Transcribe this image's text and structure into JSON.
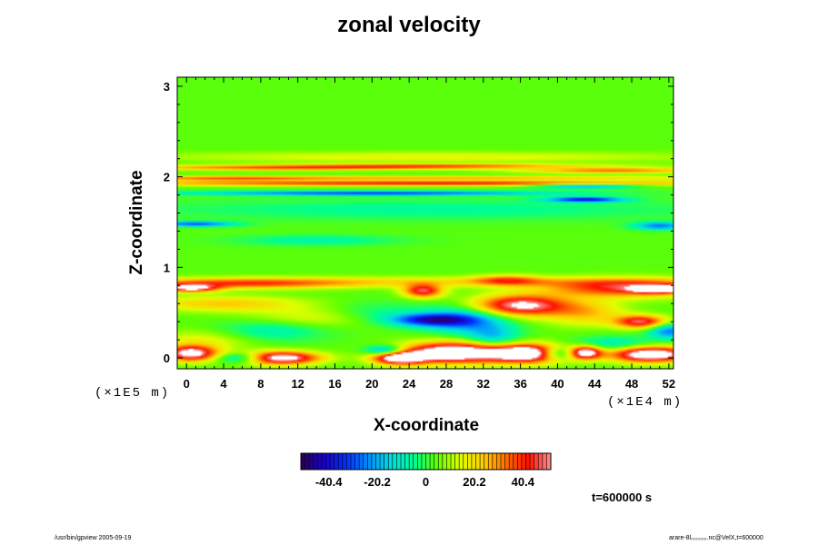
{
  "chart_data": {
    "type": "heatmap",
    "title": "zonal velocity",
    "xlabel": "X-coordinate",
    "ylabel": "Z-coordinate",
    "x_scale_label": "(×1E4 m)",
    "y_scale_label": "(×1E5 m)",
    "x_ticks": [
      "0",
      "4",
      "8",
      "12",
      "16",
      "20",
      "24",
      "28",
      "32",
      "36",
      "40",
      "44",
      "48",
      "52"
    ],
    "x_tick_values": [
      0,
      4,
      8,
      12,
      16,
      20,
      24,
      28,
      32,
      36,
      40,
      44,
      48,
      52
    ],
    "xlim": [
      -1,
      52.5
    ],
    "y_ticks": [
      "0",
      "1",
      "2",
      "3"
    ],
    "y_tick_values": [
      0,
      1,
      2,
      3
    ],
    "ylim": [
      -0.12,
      3.1
    ],
    "colorbar": {
      "ticks": [
        "-40.4",
        "-20.2",
        "0",
        "20.2",
        "40.4"
      ],
      "tick_values": [
        -40.4,
        -20.2,
        0,
        20.2,
        40.4
      ],
      "range": [
        -52,
        52
      ],
      "colormap": [
        "#2a0050",
        "#1a00c0",
        "#0030ff",
        "#0090ff",
        "#00e0e0",
        "#00ff90",
        "#60ff00",
        "#e0ff00",
        "#ffd000",
        "#ff7000",
        "#ff1000",
        "#ff9090"
      ]
    },
    "background_value": 4,
    "features": [
      {
        "x": 26,
        "z": 1.93,
        "sx": 24,
        "sz": 0.02,
        "v": 40
      },
      {
        "x": 26,
        "z": 1.99,
        "sx": 24,
        "sz": 0.015,
        "v": 24
      },
      {
        "x": 20,
        "z": 1.82,
        "sx": 14,
        "sz": 0.018,
        "v": -36
      },
      {
        "x": 43,
        "z": 1.75,
        "sx": 3,
        "sz": 0.02,
        "v": -42
      },
      {
        "x": 43,
        "z": 1.9,
        "sx": 4,
        "sz": 0.02,
        "v": -30
      },
      {
        "x": 10,
        "z": 2.1,
        "sx": 12,
        "sz": 0.02,
        "v": 30
      },
      {
        "x": 28,
        "z": 2.12,
        "sx": 12,
        "sz": 0.018,
        "v": 28
      },
      {
        "x": 46,
        "z": 2.07,
        "sx": 7,
        "sz": 0.02,
        "v": 30
      },
      {
        "x": 4,
        "z": 1.98,
        "sx": 7,
        "sz": 0.02,
        "v": 18
      },
      {
        "x": 26,
        "z": 2.22,
        "sx": 22,
        "sz": 0.04,
        "v": 12
      },
      {
        "x": 26,
        "z": 1.64,
        "sx": 22,
        "sz": 0.08,
        "v": -10
      },
      {
        "x": 1,
        "z": 1.48,
        "sx": 3,
        "sz": 0.02,
        "v": -34
      },
      {
        "x": 51,
        "z": 1.46,
        "sx": 2,
        "sz": 0.03,
        "v": -30
      },
      {
        "x": 14,
        "z": 1.3,
        "sx": 6,
        "sz": 0.04,
        "v": -12
      },
      {
        "x": 6,
        "z": 0.82,
        "sx": 8,
        "sz": 0.04,
        "v": 26
      },
      {
        "x": 26,
        "z": 0.84,
        "sx": 25,
        "sz": 0.04,
        "v": 16
      },
      {
        "x": 47,
        "z": 0.77,
        "sx": 6,
        "sz": 0.07,
        "v": 38
      },
      {
        "x": 51,
        "z": 0.76,
        "sx": 2,
        "sz": 0.03,
        "v": 52
      },
      {
        "x": 0.5,
        "z": 0.77,
        "sx": 2,
        "sz": 0.03,
        "v": 48
      },
      {
        "x": 4,
        "z": 0.6,
        "sx": 6,
        "sz": 0.06,
        "v": 20
      },
      {
        "x": 25.5,
        "z": 0.74,
        "sx": 1.5,
        "sz": 0.05,
        "v": 44
      },
      {
        "x": 36,
        "z": 0.58,
        "sx": 3.5,
        "sz": 0.08,
        "v": 52
      },
      {
        "x": 34.5,
        "z": 0.86,
        "sx": 2.5,
        "sz": 0.04,
        "v": 24
      },
      {
        "x": 43,
        "z": 0.5,
        "sx": 3,
        "sz": 0.1,
        "v": 20
      },
      {
        "x": 49,
        "z": 0.4,
        "sx": 2,
        "sz": 0.05,
        "v": 44
      },
      {
        "x": 26,
        "z": 0.42,
        "sx": 3,
        "sz": 0.05,
        "v": -38
      },
      {
        "x": 30,
        "z": 0.42,
        "sx": 3,
        "sz": 0.1,
        "v": -28
      },
      {
        "x": 20,
        "z": 0.5,
        "sx": 4,
        "sz": 0.08,
        "v": -10
      },
      {
        "x": 14,
        "z": 0.45,
        "sx": 5,
        "sz": 0.08,
        "v": 12
      },
      {
        "x": 9,
        "z": 0.3,
        "sx": 4,
        "sz": 0.08,
        "v": -14
      },
      {
        "x": 33,
        "z": 0.22,
        "sx": 2,
        "sz": 0.1,
        "v": -22
      },
      {
        "x": 0.5,
        "z": 0.05,
        "sx": 2,
        "sz": 0.06,
        "v": 56
      },
      {
        "x": 2,
        "z": 0.2,
        "sx": 4,
        "sz": 0.08,
        "v": 12
      },
      {
        "x": 10,
        "z": 0.0,
        "sx": 3,
        "sz": 0.05,
        "v": 60
      },
      {
        "x": 6,
        "z": 0.0,
        "sx": 2,
        "sz": 0.04,
        "v": -30
      },
      {
        "x": 23,
        "z": 0.0,
        "sx": 2,
        "sz": 0.05,
        "v": 60
      },
      {
        "x": 21.5,
        "z": 0.08,
        "sx": 1.5,
        "sz": 0.04,
        "v": -34
      },
      {
        "x": 29,
        "z": 0.06,
        "sx": 4,
        "sz": 0.08,
        "v": 68
      },
      {
        "x": 37,
        "z": 0.05,
        "sx": 3,
        "sz": 0.07,
        "v": 66
      },
      {
        "x": 40,
        "z": 0.05,
        "sx": 1.5,
        "sz": 0.05,
        "v": -40
      },
      {
        "x": 43,
        "z": 0.06,
        "sx": 1.2,
        "sz": 0.05,
        "v": 56
      },
      {
        "x": 50,
        "z": 0.04,
        "sx": 3,
        "sz": 0.06,
        "v": 66
      },
      {
        "x": 52,
        "z": 0.3,
        "sx": 1.5,
        "sz": 0.06,
        "v": -30
      },
      {
        "x": 46,
        "z": 0.15,
        "sx": 3,
        "sz": 0.06,
        "v": -16
      }
    ]
  },
  "annotations": {
    "time": "t=600000 s"
  },
  "footer": {
    "left": "/usr/bin/gpview 2005-09-19",
    "right": "arare-8l₀₀₀₀₀₀.nc@VelX,t=600000"
  }
}
